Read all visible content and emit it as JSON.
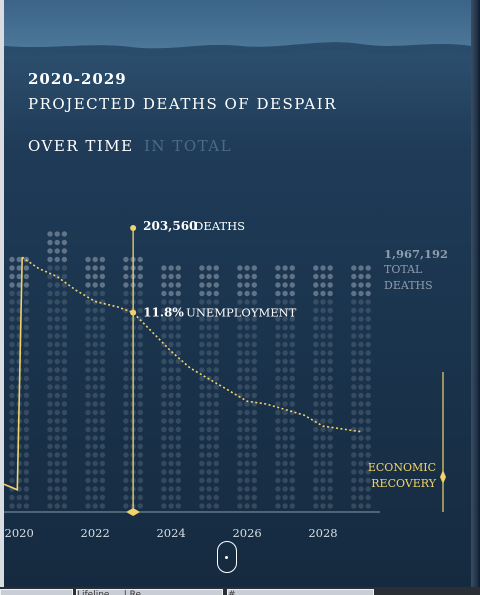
{
  "header": {
    "year_range": "2020-2029",
    "title": "PROJECTED DEATHS OF DESPAIR"
  },
  "tabs": [
    {
      "label": "OVER TIME",
      "active": true
    },
    {
      "label": "IN TOTAL",
      "active": false
    }
  ],
  "colors": {
    "accent": "#f2d36b",
    "dot": "#6f7f8f",
    "dot_light": "#9aa6b2",
    "sky_top": "#3f6a8e",
    "sky_mid": "#1f3b58",
    "water": "#173047"
  },
  "chart_data": {
    "type": "line",
    "x_ticks": [
      "2020",
      "2022",
      "2024",
      "2026",
      "2028"
    ],
    "xlim": [
      2019.6,
      2029.5
    ],
    "deaths_per_year": {
      "years": [
        2020,
        2021,
        2022,
        2023,
        2024,
        2025,
        2026,
        2027,
        2028,
        2029
      ],
      "relative_height": [
        0.88,
        0.96,
        0.88,
        0.88,
        0.86,
        0.85,
        0.85,
        0.84,
        0.84,
        0.84
      ]
    },
    "unemployment": {
      "x": [
        2019.6,
        2019.95,
        2020.08,
        2020.5,
        2021.0,
        2021.5,
        2022.0,
        2022.6,
        2023.0,
        2023.5,
        2024.0,
        2024.5,
        2025.0,
        2025.5,
        2026.0,
        2026.5,
        2027.0,
        2027.5,
        2028.0,
        2028.5,
        2029.0
      ],
      "y": [
        0.1,
        0.08,
        0.92,
        0.88,
        0.85,
        0.8,
        0.76,
        0.74,
        0.72,
        0.65,
        0.58,
        0.52,
        0.48,
        0.44,
        0.4,
        0.39,
        0.37,
        0.35,
        0.31,
        0.3,
        0.29
      ],
      "ylim": [
        0,
        1
      ]
    },
    "marker_year": 2023,
    "annotations": {
      "deaths_value": "203,560",
      "deaths_label": "DEATHS",
      "unemployment_value": "11.8%",
      "unemployment_label": "UNEMPLOYMENT",
      "total_value": "1,967,192",
      "total_line1": "TOTAL",
      "total_line2": "DEATHS",
      "recovery_line1": "ECONOMIC",
      "recovery_line2": "RECOVERY"
    }
  },
  "taskbar": {
    "items": [
      "Lifeline ... | Re...",
      "#..."
    ]
  }
}
